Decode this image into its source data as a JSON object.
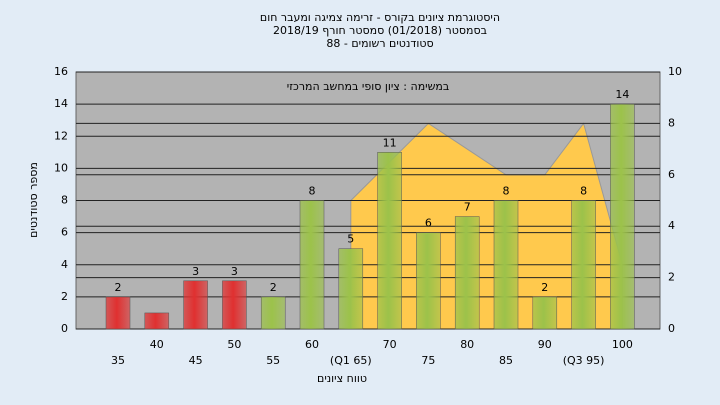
{
  "chart_data": {
    "type": "bar",
    "title": "היסטוגרמת ציונים בקורס - זרימה צמיגה ומעבר חום",
    "subtitle": "בסמסטר  (01/2018)  סמסטר חורף  2018/19",
    "subtitle2": "סטודנטים רשומים - 88",
    "annotation": "במשימה : ציון סופי במחשב המרכזי",
    "xlabel": "טווח ציונים",
    "ylabel": "מספר סטודנטים",
    "categories": [
      "35",
      "40",
      "45",
      "50",
      "55",
      "60",
      "(Q1 65)",
      "70",
      "75",
      "80",
      "85",
      "90",
      "(Q3 95)",
      "100"
    ],
    "values": [
      2,
      1,
      3,
      3,
      2,
      8,
      5,
      11,
      6,
      7,
      8,
      2,
      8,
      14
    ],
    "value_labels": [
      "2",
      null,
      "3",
      "3",
      "2",
      "8",
      "5",
      "11",
      "6",
      "7",
      "8",
      "2",
      "8",
      "14"
    ],
    "colors": [
      "#e03030",
      "#e03030",
      "#e03030",
      "#e03030",
      "#9cc24a",
      "#9cc24a",
      "#9cc24a",
      "#9cc24a",
      "#9cc24a",
      "#9cc24a",
      "#9cc24a",
      "#9cc24a",
      "#9cc24a",
      "#9cc24a"
    ],
    "area": {
      "color": "#ffc94d",
      "axis": "y2",
      "values": [
        null,
        null,
        null,
        null,
        null,
        null,
        5,
        6.5,
        8,
        7,
        6,
        6,
        8,
        2.5
      ]
    },
    "ylim": [
      0,
      16
    ],
    "yticks": [
      0,
      2,
      4,
      6,
      8,
      10,
      12,
      14,
      16
    ],
    "y2lim": [
      0,
      10
    ],
    "y2ticks": [
      0,
      2,
      4,
      6,
      8,
      10
    ],
    "grid": true
  }
}
